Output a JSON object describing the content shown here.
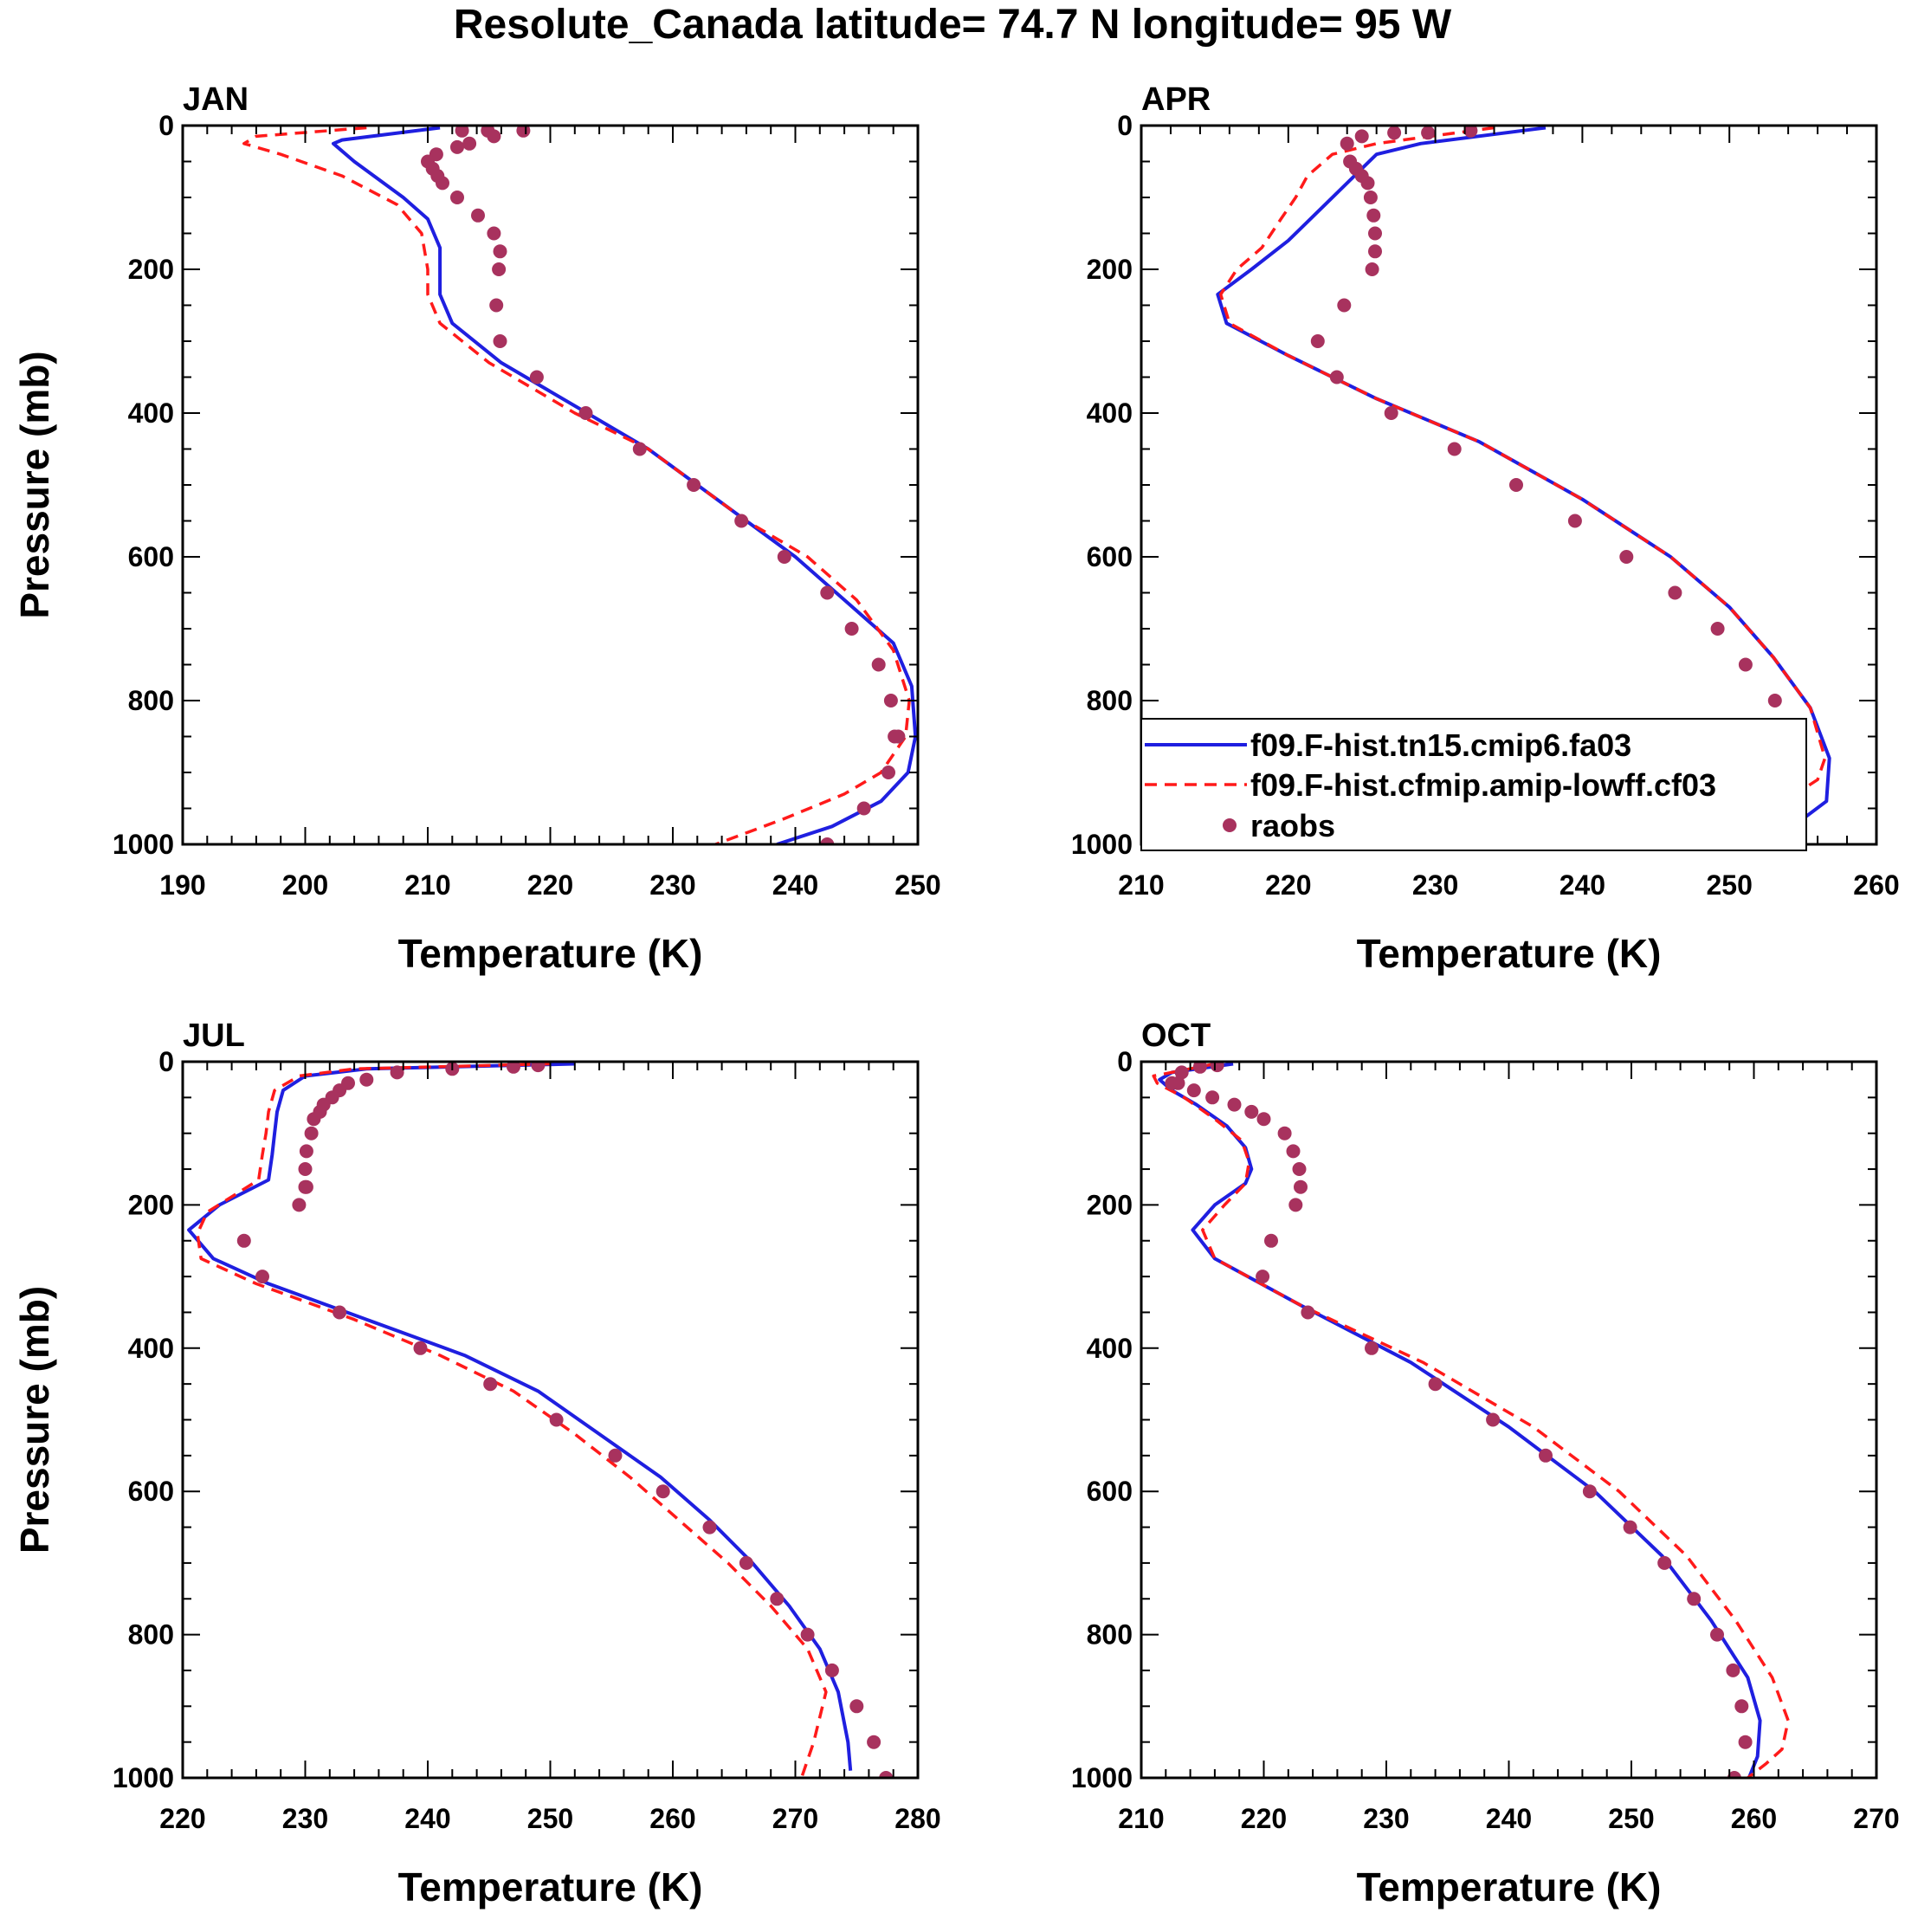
{
  "figure": {
    "title": "Resolute_Canada  latitude= 74.7 N longitude= 95 W"
  },
  "legend": {
    "placement": "bottom-right of APR panel",
    "entries": [
      {
        "label": "f09.F-hist.tn15.cmip6.fa03",
        "style": "solid",
        "color": "#1f1fe0"
      },
      {
        "label": "f09.F-hist.cfmip.amip-lowff.cf03",
        "style": "dashed",
        "color": "#ff1a1a"
      },
      {
        "label": "raobs",
        "style": "dots",
        "color": "#a8325e"
      }
    ]
  },
  "chart_data": [
    {
      "type": "line",
      "title": "JAN",
      "xlabel": "Temperature (K)",
      "ylabel": "Pressure (mb)",
      "xlim": [
        190,
        250
      ],
      "ylim": [
        1000,
        0
      ],
      "xticks": [
        "190",
        "200",
        "210",
        "220",
        "230",
        "240",
        "250"
      ],
      "yticks": [
        "0",
        "200",
        "400",
        "600",
        "800",
        "1000"
      ],
      "series": [
        {
          "name": "f09.F-hist.tn15.cmip6.fa03",
          "x": [
            211,
            203,
            202.3,
            204,
            208,
            210,
            211,
            211,
            211,
            212,
            216,
            223,
            228,
            232,
            236,
            240,
            244,
            248,
            249.5,
            249.8,
            249.2,
            247,
            243,
            238.5
          ],
          "y": [
            3,
            20,
            25,
            50,
            100,
            130,
            170,
            200,
            235,
            275,
            330,
            400,
            450,
            500,
            550,
            600,
            660,
            720,
            780,
            850,
            900,
            940,
            975,
            1000
          ]
        },
        {
          "name": "f09.F-hist.cfmip.amip-lowff.cf03",
          "x": [
            205,
            196,
            195,
            198,
            203,
            207.5,
            209.5,
            210,
            210,
            211,
            215,
            222,
            228,
            232,
            236,
            241,
            245,
            248,
            249.3,
            249,
            247,
            244,
            239,
            233.5
          ],
          "y": [
            3,
            15,
            25,
            40,
            70,
            110,
            150,
            200,
            235,
            275,
            330,
            400,
            450,
            500,
            550,
            600,
            660,
            730,
            800,
            850,
            900,
            930,
            965,
            1000
          ]
        },
        {
          "name": "raobs",
          "x": [
            217.8,
            212.8,
            214.9,
            215.4,
            213.4,
            212.4,
            210.7,
            210.0,
            210.4,
            210.8,
            211.2,
            212.4,
            214.1,
            215.4,
            215.9,
            215.8,
            215.6,
            215.9,
            218.9,
            222.9,
            227.3,
            231.7,
            235.6,
            239.1,
            242.6,
            244.6,
            246.8,
            247.8,
            248.1,
            248.4,
            247.6,
            245.6,
            242.6
          ],
          "y": [
            7,
            7,
            7,
            15,
            25,
            30,
            40,
            50,
            60,
            70,
            80,
            100,
            125,
            150,
            175,
            200,
            250,
            300,
            350,
            400,
            450,
            500,
            550,
            600,
            650,
            700,
            750,
            800,
            850,
            850,
            900,
            950,
            1000
          ]
        }
      ]
    },
    {
      "type": "line",
      "title": "APR",
      "xlabel": "Temperature (K)",
      "ylabel": "",
      "xlim": [
        210,
        260
      ],
      "ylim": [
        1000,
        0
      ],
      "xticks": [
        "210",
        "220",
        "230",
        "240",
        "250",
        "260"
      ],
      "yticks": [
        "0",
        "200",
        "400",
        "600",
        "800",
        "1000"
      ],
      "series": [
        {
          "name": "f09.F-hist.tn15.cmip6.fa03",
          "x": [
            237.5,
            229,
            226,
            224.5,
            222,
            220,
            217.5,
            215.2,
            215.8,
            220,
            226,
            233,
            240,
            246,
            250,
            253,
            255.5,
            256.8,
            256.6,
            254,
            251
          ],
          "y": [
            3,
            25,
            40,
            70,
            120,
            160,
            200,
            235,
            275,
            320,
            380,
            440,
            520,
            600,
            670,
            740,
            810,
            880,
            940,
            980,
            1000
          ]
        },
        {
          "name": "f09.F-hist.cfmip.amip-lowff.cf03",
          "x": [
            234,
            226,
            223,
            221.3,
            220.5,
            219.5,
            218.2,
            216.5,
            215.4,
            216,
            220,
            226,
            233,
            240,
            246,
            250,
            253,
            255.5,
            256.5,
            256,
            253,
            250,
            246.8
          ],
          "y": [
            3,
            25,
            40,
            70,
            100,
            130,
            170,
            200,
            235,
            275,
            320,
            380,
            440,
            520,
            600,
            670,
            740,
            810,
            880,
            910,
            950,
            975,
            1000
          ]
        },
        {
          "name": "raobs",
          "x": [
            232.4,
            229.5,
            227.2,
            225.0,
            224.0,
            224.2,
            224.6,
            225.0,
            225.4,
            225.6,
            225.8,
            225.9,
            225.9,
            225.7,
            223.8,
            222.0,
            223.3,
            227.0,
            231.3,
            235.5,
            239.5,
            243.0,
            246.3,
            249.2,
            251.1,
            253.1,
            254.2,
            254.2,
            253.4,
            251.0
          ],
          "y": [
            7,
            10,
            10,
            15,
            25,
            50,
            60,
            70,
            80,
            100,
            125,
            150,
            175,
            200,
            250,
            300,
            350,
            400,
            450,
            500,
            550,
            600,
            650,
            700,
            750,
            800,
            850,
            900,
            950,
            1000
          ]
        }
      ]
    },
    {
      "type": "line",
      "title": "JUL",
      "xlabel": "Temperature (K)",
      "ylabel": "Pressure (mb)",
      "xlim": [
        220,
        280
      ],
      "ylim": [
        1000,
        0
      ],
      "xticks": [
        "220",
        "230",
        "240",
        "250",
        "260",
        "270",
        "280"
      ],
      "yticks": [
        "0",
        "200",
        "400",
        "600",
        "800",
        "1000"
      ],
      "series": [
        {
          "name": "f09.F-hist.tn15.cmip6.fa03",
          "x": [
            252,
            235,
            230,
            228.2,
            227.7,
            227.5,
            227.3,
            227,
            223,
            220.5,
            222.5,
            227,
            235,
            243,
            249,
            254,
            259,
            263,
            266.5,
            269.5,
            272,
            273.5,
            274.3,
            274.5
          ],
          "y": [
            3,
            10,
            20,
            40,
            70,
            100,
            130,
            165,
            200,
            235,
            275,
            310,
            360,
            410,
            460,
            520,
            580,
            640,
            700,
            760,
            820,
            880,
            950,
            990
          ]
        },
        {
          "name": "f09.F-hist.cfmip.amip-lowff.cf03",
          "x": [
            250,
            234,
            229.5,
            227.5,
            227,
            226.8,
            226.5,
            226.2,
            222,
            221.2,
            221.5,
            226,
            234,
            241,
            247,
            252,
            256.5,
            260.5,
            264.5,
            268,
            271,
            272.5,
            271.5,
            270.5
          ],
          "y": [
            3,
            10,
            20,
            40,
            70,
            100,
            130,
            165,
            210,
            240,
            275,
            310,
            360,
            410,
            460,
            520,
            580,
            640,
            700,
            760,
            820,
            880,
            950,
            1000
          ]
        },
        {
          "name": "raobs",
          "x": [
            249.0,
            247.0,
            242.0,
            237.5,
            235.0,
            233.5,
            232.8,
            232.2,
            231.5,
            231.2,
            230.7,
            230.5,
            230.1,
            230.0,
            230.0,
            230.1,
            229.5,
            225.0,
            226.5,
            232.8,
            239.4,
            245.1,
            250.5,
            255.3,
            259.2,
            263.0,
            266.0,
            268.5,
            271.0,
            273.0,
            275.0,
            276.4,
            277.4
          ],
          "y": [
            5,
            7,
            10,
            15,
            25,
            30,
            40,
            50,
            60,
            70,
            80,
            100,
            125,
            150,
            175,
            175,
            200,
            250,
            300,
            350,
            400,
            450,
            500,
            550,
            600,
            650,
            700,
            750,
            800,
            850,
            900,
            950,
            1000
          ]
        }
      ]
    },
    {
      "type": "line",
      "title": "OCT",
      "xlabel": "Temperature (K)",
      "ylabel": "",
      "xlim": [
        210,
        270
      ],
      "ylim": [
        1000,
        0
      ],
      "xticks": [
        "210",
        "220",
        "230",
        "240",
        "250",
        "260",
        "270"
      ],
      "yticks": [
        "0",
        "200",
        "400",
        "600",
        "800",
        "1000"
      ],
      "series": [
        {
          "name": "f09.F-hist.tn15.cmip6.fa03",
          "x": [
            217.5,
            212.5,
            211.5,
            212.5,
            214.5,
            217,
            218.5,
            219,
            218.5,
            216,
            214.2,
            216,
            223,
            232,
            240,
            247,
            252.5,
            256.5,
            259.5,
            260.5,
            260.3,
            259.6
          ],
          "y": [
            3,
            15,
            25,
            40,
            60,
            90,
            120,
            150,
            170,
            200,
            235,
            275,
            340,
            420,
            510,
            600,
            690,
            780,
            860,
            920,
            970,
            1000
          ]
        },
        {
          "name": "f09.F-hist.cfmip.amip-lowff.cf03",
          "x": [
            216,
            211,
            211.3,
            213.5,
            216,
            218.2,
            218.8,
            218.5,
            216.8,
            215,
            216,
            223,
            233,
            242,
            249,
            254.5,
            258.5,
            261.5,
            262.8,
            262.3,
            261,
            259.5
          ],
          "y": [
            3,
            20,
            30,
            50,
            80,
            110,
            140,
            170,
            200,
            235,
            275,
            340,
            420,
            510,
            600,
            690,
            780,
            860,
            920,
            960,
            980,
            1000
          ]
        },
        {
          "name": "raobs",
          "x": [
            216.2,
            214.8,
            213.3,
            212.5,
            213.0,
            214.3,
            215.8,
            217.6,
            219.0,
            220.0,
            221.7,
            222.4,
            222.9,
            223.0,
            222.6,
            220.6,
            219.9,
            223.6,
            228.8,
            234.0,
            238.7,
            243.0,
            246.6,
            249.9,
            252.7,
            255.1,
            257.0,
            258.3,
            259.0,
            259.3,
            258.4
          ],
          "y": [
            5,
            7,
            15,
            30,
            30,
            40,
            50,
            60,
            70,
            80,
            100,
            125,
            150,
            175,
            200,
            250,
            300,
            350,
            400,
            450,
            500,
            550,
            600,
            650,
            700,
            750,
            800,
            850,
            900,
            950,
            1000
          ]
        }
      ]
    }
  ]
}
